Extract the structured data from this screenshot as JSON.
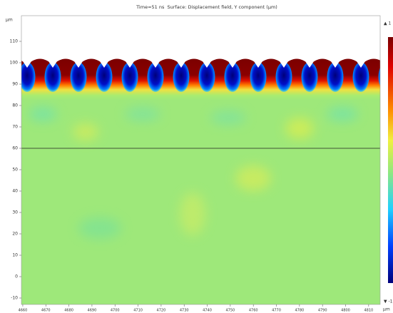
{
  "chart_data": {
    "type": "surface",
    "title": "Time=51 ns  Surface: Displacement field, Y component (µm)",
    "x_unit": "µm",
    "y_unit": "µm",
    "xlim": [
      4659.4,
      4815
    ],
    "ylim": [
      -13,
      122
    ],
    "xticks": [
      4660,
      4670,
      4680,
      4690,
      4700,
      4710,
      4720,
      4730,
      4740,
      4750,
      4760,
      4770,
      4780,
      4790,
      4800,
      4810
    ],
    "yticks": [
      -10,
      0,
      10,
      20,
      30,
      40,
      50,
      60,
      70,
      80,
      90,
      100,
      110
    ],
    "colorbar": {
      "ticks": [
        {
          "value": 1,
          "label": "▲ 1"
        },
        {
          "value": -1,
          "label": "▼ -1"
        }
      ]
    }
  }
}
